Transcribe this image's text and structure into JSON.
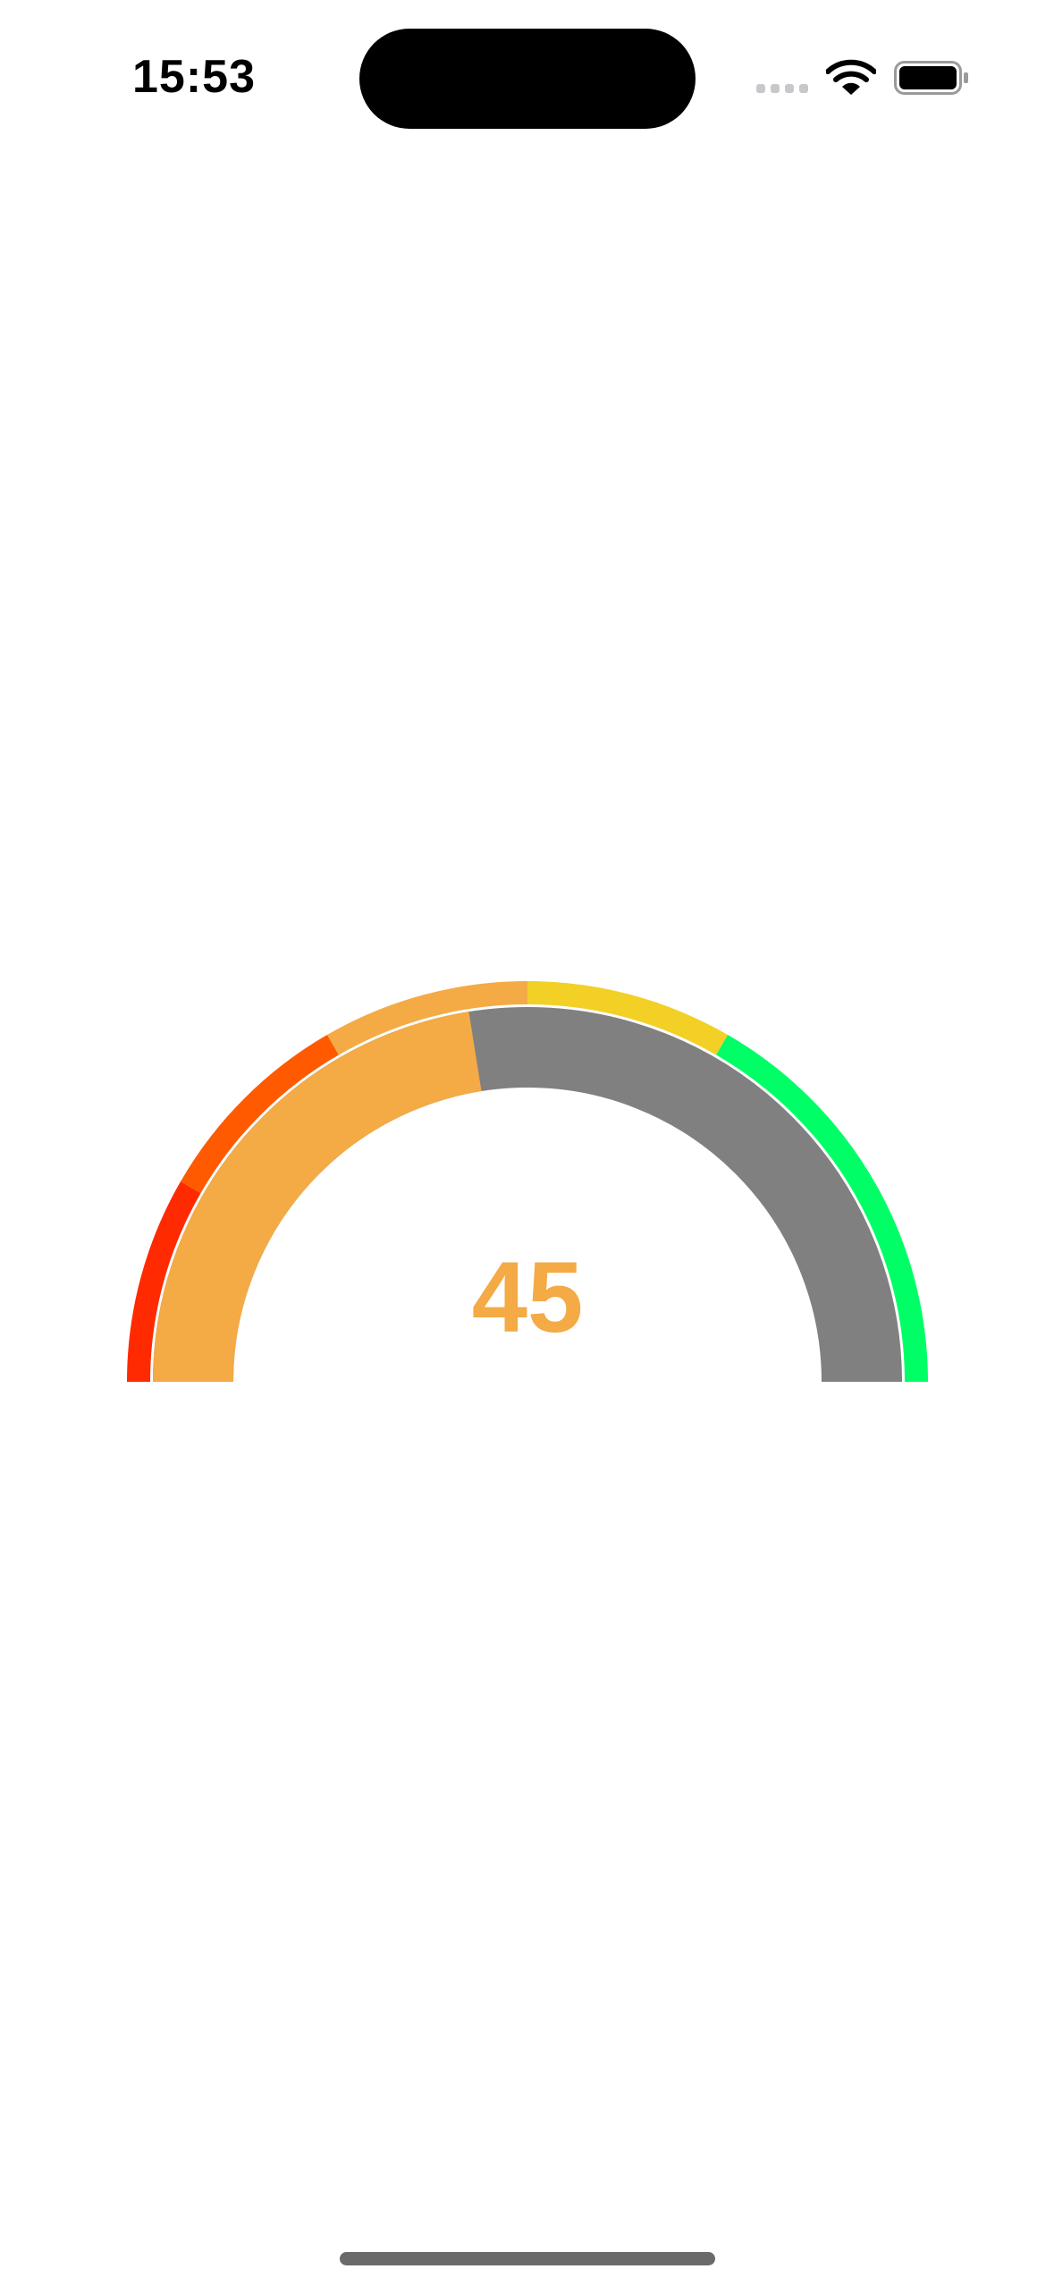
{
  "status_bar": {
    "time": "15:53",
    "icons": [
      "cellular-signal-icon",
      "wifi-icon",
      "battery-icon"
    ]
  },
  "gauge": {
    "value": "45",
    "min": 0,
    "max": 100,
    "fill_fraction": 0.45,
    "colors": {
      "fill": "#F4AA45",
      "track": "#808080",
      "value_text": "#F4AA45"
    },
    "bands": [
      {
        "from": 0,
        "to": 16.67,
        "color": "#FF2A00"
      },
      {
        "from": 16.67,
        "to": 33.33,
        "color": "#FF5A00"
      },
      {
        "from": 33.33,
        "to": 50,
        "color": "#F4AA45"
      },
      {
        "from": 50,
        "to": 66.67,
        "color": "#F2D026"
      },
      {
        "from": 66.67,
        "to": 100,
        "color": "#00FF66"
      }
    ]
  }
}
